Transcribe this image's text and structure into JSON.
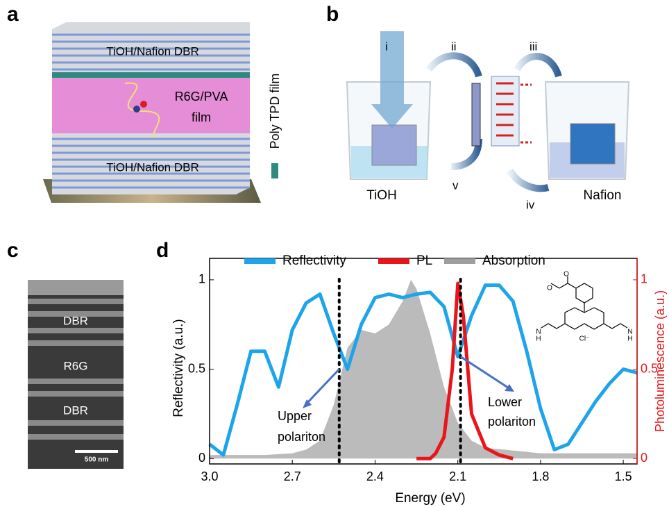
{
  "panels": {
    "a": {
      "label": "a",
      "texts": [
        "TiOH/Nafion DBR",
        "R6G/PVA",
        "film",
        "TiOH/Nafion DBR",
        "Poly TPD film"
      ]
    },
    "b": {
      "label": "b",
      "texts": [
        "i",
        "ii",
        "iii",
        "iv",
        "v",
        "TiOH",
        "Nafion"
      ]
    },
    "c": {
      "label": "c",
      "texts": [
        "DBR",
        "R6G",
        "DBR",
        "500 nm"
      ]
    },
    "d": {
      "label": "d",
      "molecule": [
        "O",
        "O",
        "N",
        "N",
        "H",
        "H",
        "Cl⁻"
      ]
    }
  },
  "chart_data": {
    "type": "line",
    "xlabel": "Energy (eV)",
    "ylabel": "Reflectivity (a.u.)",
    "y2label": "Photoluminescence (a.u.)",
    "xlim": [
      3.0,
      1.45
    ],
    "xticks": [
      {
        "value": 3.0,
        "label": "3.0"
      },
      2.7,
      2.4,
      2.1,
      1.8,
      1.5
    ],
    "ylim": [
      -0.03,
      1.12
    ],
    "yticks": [
      0,
      0.5,
      1
    ],
    "y2lim": [
      -0.03,
      1.12
    ],
    "y2ticks": [
      0,
      0.5,
      1
    ],
    "legend": "top",
    "vlines": [
      2.53,
      2.09
    ],
    "annotations": [
      "Upper",
      "polariton",
      "Lower",
      "polariton"
    ],
    "series": [
      {
        "name": "Reflectivity",
        "color": "#1ea4ea",
        "x": [
          3.0,
          2.95,
          2.9,
          2.85,
          2.8,
          2.75,
          2.7,
          2.65,
          2.6,
          2.55,
          2.5,
          2.45,
          2.4,
          2.35,
          2.3,
          2.25,
          2.2,
          2.15,
          2.1,
          2.05,
          2.0,
          1.95,
          1.9,
          1.85,
          1.8,
          1.75,
          1.7,
          1.65,
          1.6,
          1.55,
          1.5,
          1.45
        ],
        "values": [
          0.08,
          0.02,
          0.3,
          0.6,
          0.6,
          0.4,
          0.72,
          0.87,
          0.92,
          0.7,
          0.5,
          0.75,
          0.9,
          0.92,
          0.9,
          0.92,
          0.93,
          0.85,
          0.57,
          0.8,
          0.97,
          0.97,
          0.88,
          0.6,
          0.28,
          0.05,
          0.08,
          0.2,
          0.32,
          0.42,
          0.5,
          0.48
        ]
      },
      {
        "name": "PL",
        "color": "#e8161b",
        "axis": "y2",
        "x": [
          2.25,
          2.2,
          2.18,
          2.15,
          2.12,
          2.1,
          2.08,
          2.05,
          2.0,
          1.95,
          1.9
        ],
        "values": [
          0,
          0,
          0.03,
          0.12,
          0.5,
          0.98,
          0.8,
          0.25,
          0.06,
          0.02,
          0
        ]
      },
      {
        "name": "Absorption",
        "color": "#9e9e9e",
        "area": true,
        "x": [
          3.0,
          2.8,
          2.7,
          2.65,
          2.6,
          2.55,
          2.5,
          2.45,
          2.4,
          2.35,
          2.3,
          2.27,
          2.25,
          2.2,
          2.15,
          2.1,
          2.05,
          2.0,
          1.8,
          1.6,
          1.45
        ],
        "values": [
          0.02,
          0.02,
          0.03,
          0.05,
          0.1,
          0.3,
          0.62,
          0.72,
          0.7,
          0.75,
          0.88,
          1.0,
          0.95,
          0.7,
          0.4,
          0.2,
          0.1,
          0.06,
          0.03,
          0.03,
          0.03
        ]
      }
    ]
  }
}
